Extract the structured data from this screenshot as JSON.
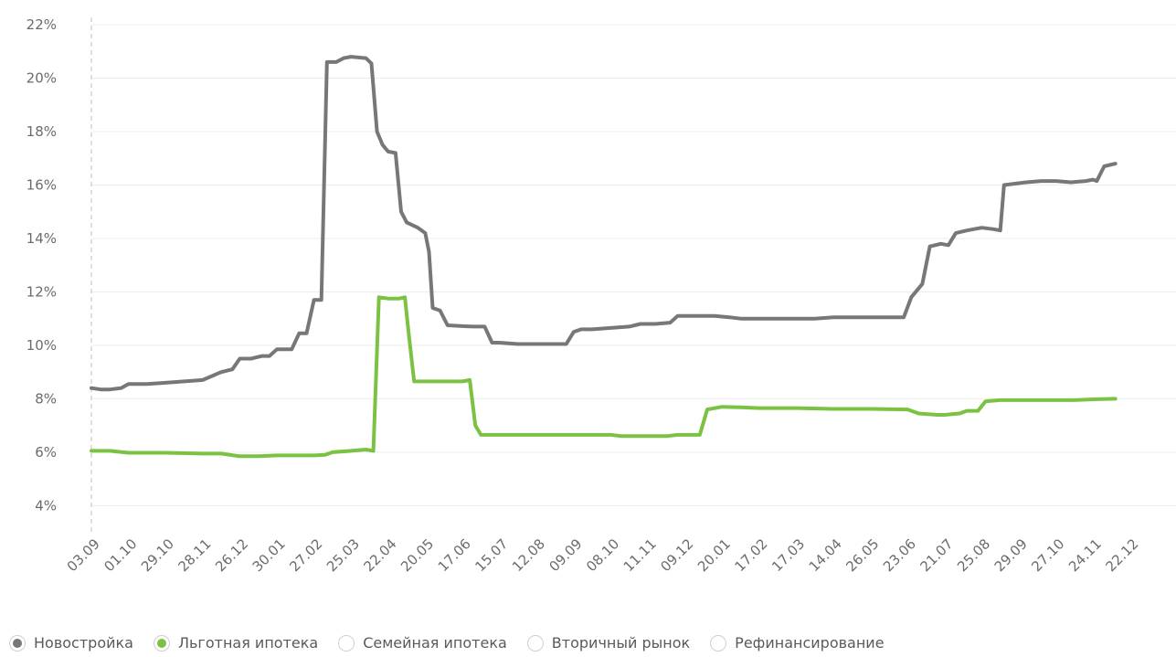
{
  "chart_data": {
    "type": "line",
    "title": "",
    "xlabel": "",
    "ylabel": "",
    "ylim": [
      3.5,
      22
    ],
    "yticks": [
      4,
      6,
      8,
      10,
      12,
      14,
      16,
      18,
      20,
      22
    ],
    "ytick_labels": [
      "4%",
      "6%",
      "8%",
      "10%",
      "12%",
      "14%",
      "16%",
      "18%",
      "20%",
      "22%"
    ],
    "grid": true,
    "legend_position": "bottom",
    "categories": [
      "03.09",
      "01.10",
      "29.10",
      "28.11",
      "26.12",
      "30.01",
      "27.02",
      "25.03",
      "22.04",
      "20.05",
      "17.06",
      "15.07",
      "12.08",
      "09.09",
      "08.10",
      "11.11",
      "09.12",
      "20.01",
      "17.02",
      "17.03",
      "14.04",
      "26.05",
      "23.06",
      "21.07",
      "25.08",
      "29.09",
      "27.10",
      "24.11",
      "22.12"
    ],
    "series": [
      {
        "name": "Новостройка",
        "color": "#777777",
        "points": [
          [
            0,
            8.4
          ],
          [
            0.25,
            8.35
          ],
          [
            0.5,
            8.35
          ],
          [
            0.8,
            8.4
          ],
          [
            1.0,
            8.55
          ],
          [
            1.5,
            8.55
          ],
          [
            2.0,
            8.6
          ],
          [
            2.5,
            8.65
          ],
          [
            3.0,
            8.7
          ],
          [
            3.5,
            9.0
          ],
          [
            3.8,
            9.1
          ],
          [
            4.0,
            9.5
          ],
          [
            4.3,
            9.5
          ],
          [
            4.6,
            9.6
          ],
          [
            4.8,
            9.6
          ],
          [
            5.0,
            9.85
          ],
          [
            5.2,
            9.85
          ],
          [
            5.4,
            9.85
          ],
          [
            5.6,
            10.45
          ],
          [
            5.8,
            10.45
          ],
          [
            6.0,
            11.7
          ],
          [
            6.2,
            11.7
          ],
          [
            6.35,
            20.6
          ],
          [
            6.6,
            20.6
          ],
          [
            6.8,
            20.75
          ],
          [
            7.0,
            20.8
          ],
          [
            7.4,
            20.75
          ],
          [
            7.55,
            20.55
          ],
          [
            7.7,
            18.0
          ],
          [
            7.85,
            17.5
          ],
          [
            8.0,
            17.25
          ],
          [
            8.2,
            17.2
          ],
          [
            8.35,
            15.0
          ],
          [
            8.5,
            14.6
          ],
          [
            8.8,
            14.4
          ],
          [
            9.0,
            14.2
          ],
          [
            9.1,
            13.5
          ],
          [
            9.2,
            11.4
          ],
          [
            9.4,
            11.3
          ],
          [
            9.6,
            10.75
          ],
          [
            10.0,
            10.72
          ],
          [
            10.3,
            10.7
          ],
          [
            10.6,
            10.7
          ],
          [
            10.8,
            10.1
          ],
          [
            11.0,
            10.1
          ],
          [
            11.5,
            10.05
          ],
          [
            12.0,
            10.05
          ],
          [
            12.5,
            10.05
          ],
          [
            12.8,
            10.05
          ],
          [
            13.0,
            10.5
          ],
          [
            13.2,
            10.6
          ],
          [
            13.5,
            10.6
          ],
          [
            14.0,
            10.65
          ],
          [
            14.5,
            10.7
          ],
          [
            14.8,
            10.8
          ],
          [
            15.2,
            10.8
          ],
          [
            15.6,
            10.85
          ],
          [
            15.8,
            11.1
          ],
          [
            16.2,
            11.1
          ],
          [
            16.8,
            11.1
          ],
          [
            17.2,
            11.05
          ],
          [
            17.5,
            11.0
          ],
          [
            18.0,
            11.0
          ],
          [
            18.5,
            11.0
          ],
          [
            19.0,
            11.0
          ],
          [
            19.5,
            11.0
          ],
          [
            20.0,
            11.05
          ],
          [
            20.5,
            11.05
          ],
          [
            21.0,
            11.05
          ],
          [
            21.5,
            11.05
          ],
          [
            21.9,
            11.05
          ],
          [
            22.1,
            11.8
          ],
          [
            22.4,
            12.3
          ],
          [
            22.6,
            13.7
          ],
          [
            22.9,
            13.8
          ],
          [
            23.1,
            13.75
          ],
          [
            23.3,
            14.2
          ],
          [
            23.6,
            14.3
          ],
          [
            24.0,
            14.4
          ],
          [
            24.3,
            14.35
          ],
          [
            24.5,
            14.3
          ],
          [
            24.6,
            16.0
          ],
          [
            24.9,
            16.05
          ],
          [
            25.2,
            16.1
          ],
          [
            25.6,
            16.15
          ],
          [
            26.0,
            16.15
          ],
          [
            26.4,
            16.1
          ],
          [
            26.8,
            16.15
          ],
          [
            27.0,
            16.2
          ],
          [
            27.1,
            16.15
          ],
          [
            27.3,
            16.7
          ],
          [
            27.6,
            16.8
          ]
        ]
      },
      {
        "name": "Льготная ипотека",
        "color": "#7cc242",
        "points": [
          [
            0,
            6.05
          ],
          [
            0.5,
            6.05
          ],
          [
            1.0,
            5.98
          ],
          [
            2.0,
            5.98
          ],
          [
            3.0,
            5.95
          ],
          [
            3.5,
            5.95
          ],
          [
            4.0,
            5.85
          ],
          [
            4.5,
            5.85
          ],
          [
            5.0,
            5.88
          ],
          [
            5.5,
            5.88
          ],
          [
            6.0,
            5.88
          ],
          [
            6.3,
            5.9
          ],
          [
            6.5,
            6.0
          ],
          [
            7.0,
            6.05
          ],
          [
            7.4,
            6.1
          ],
          [
            7.6,
            6.05
          ],
          [
            7.75,
            11.8
          ],
          [
            8.0,
            11.75
          ],
          [
            8.3,
            11.75
          ],
          [
            8.45,
            11.8
          ],
          [
            8.55,
            10.5
          ],
          [
            8.7,
            8.65
          ],
          [
            9.0,
            8.65
          ],
          [
            9.5,
            8.65
          ],
          [
            10.0,
            8.65
          ],
          [
            10.2,
            8.7
          ],
          [
            10.35,
            7.0
          ],
          [
            10.5,
            6.65
          ],
          [
            11.0,
            6.65
          ],
          [
            12.0,
            6.65
          ],
          [
            13.0,
            6.65
          ],
          [
            13.5,
            6.65
          ],
          [
            14.0,
            6.65
          ],
          [
            14.3,
            6.6
          ],
          [
            15.0,
            6.6
          ],
          [
            15.5,
            6.6
          ],
          [
            15.8,
            6.65
          ],
          [
            16.2,
            6.65
          ],
          [
            16.4,
            6.65
          ],
          [
            16.6,
            7.6
          ],
          [
            17.0,
            7.7
          ],
          [
            17.5,
            7.68
          ],
          [
            18.0,
            7.65
          ],
          [
            19.0,
            7.65
          ],
          [
            20.0,
            7.62
          ],
          [
            21.0,
            7.62
          ],
          [
            22.0,
            7.6
          ],
          [
            22.3,
            7.45
          ],
          [
            22.8,
            7.4
          ],
          [
            23.0,
            7.4
          ],
          [
            23.4,
            7.45
          ],
          [
            23.6,
            7.55
          ],
          [
            23.9,
            7.55
          ],
          [
            24.1,
            7.9
          ],
          [
            24.5,
            7.95
          ],
          [
            25.0,
            7.95
          ],
          [
            25.5,
            7.95
          ],
          [
            26.0,
            7.95
          ],
          [
            26.5,
            7.95
          ],
          [
            27.0,
            7.98
          ],
          [
            27.6,
            8.0
          ]
        ]
      }
    ]
  },
  "legend": [
    {
      "label": "Новостройка",
      "checked": true,
      "color": "#777777"
    },
    {
      "label": "Льготная ипотека",
      "checked": true,
      "color": "#7cc242"
    },
    {
      "label": "Семейная ипотека",
      "checked": false,
      "color": ""
    },
    {
      "label": "Вторичный рынок",
      "checked": false,
      "color": ""
    },
    {
      "label": "Рефинансирование",
      "checked": false,
      "color": ""
    }
  ]
}
